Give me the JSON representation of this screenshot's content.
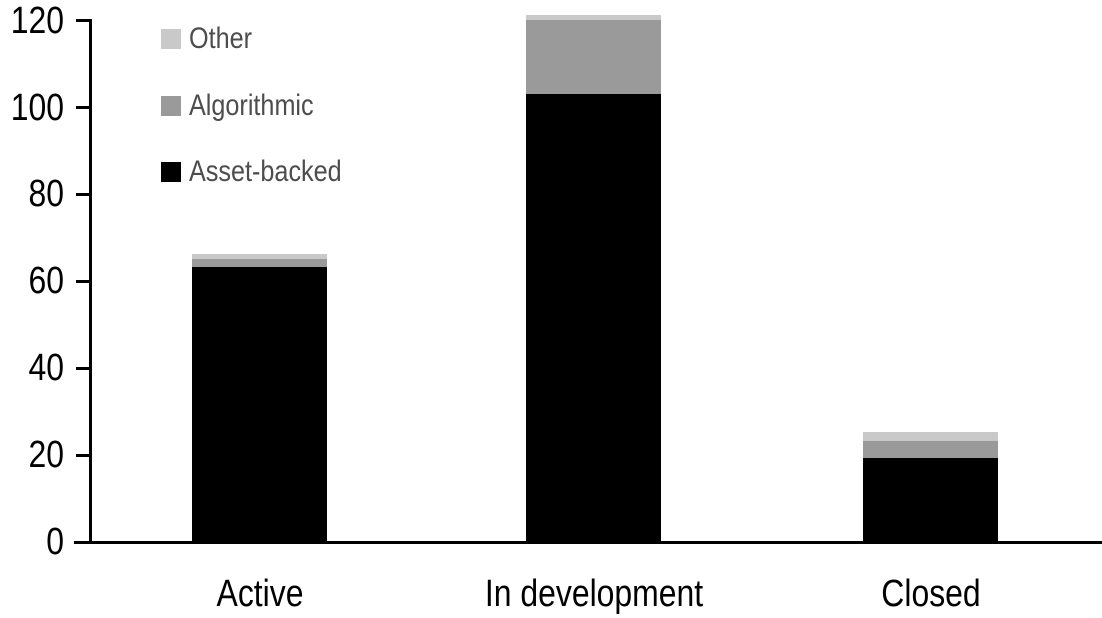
{
  "chart_data": {
    "type": "bar",
    "stacked": true,
    "title": "",
    "xlabel": "",
    "ylabel": "",
    "categories": [
      "Active",
      "In development",
      "Closed"
    ],
    "series": [
      {
        "name": "Asset-backed",
        "color": "#000000",
        "values": [
          63,
          103,
          19
        ]
      },
      {
        "name": "Algorithmic",
        "color": "#9a9a9a",
        "values": [
          2,
          17,
          4
        ]
      },
      {
        "name": "Other",
        "color": "#c9c9c9",
        "values": [
          1,
          1,
          2
        ]
      }
    ],
    "stack_totals": [
      66,
      121,
      25
    ],
    "ylim": [
      0,
      120
    ],
    "yticks": [
      0,
      20,
      40,
      60,
      80,
      100,
      120
    ],
    "grid": false,
    "axis_color": "#000000",
    "background": "#ffffff",
    "legend": {
      "position": "top-left",
      "text_color": "#4d4d4d",
      "entries": [
        {
          "label": "Other",
          "color": "#c9c9c9"
        },
        {
          "label": "Algorithmic",
          "color": "#9a9a9a"
        },
        {
          "label": "Asset-backed",
          "color": "#000000"
        }
      ]
    }
  }
}
